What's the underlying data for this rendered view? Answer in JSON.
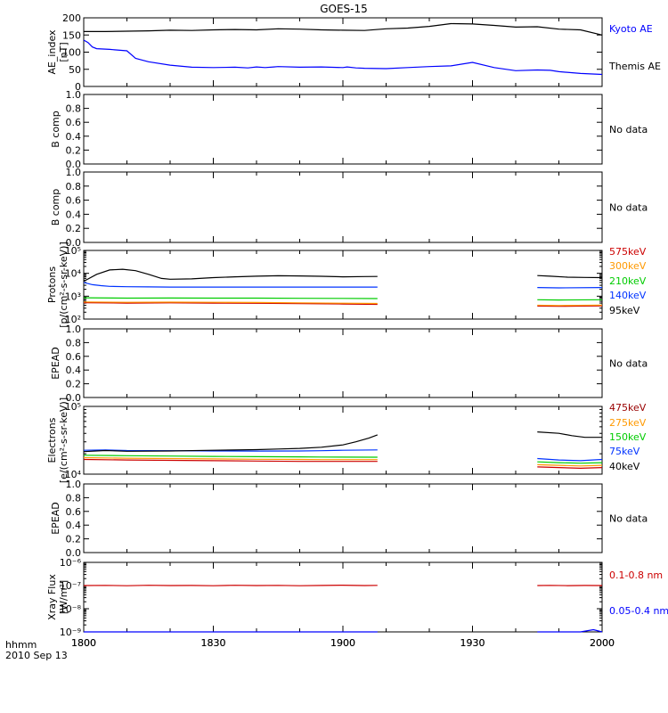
{
  "figure": {
    "title": "GOES-15",
    "time_label": "hhmm",
    "date_label": "2010 Sep 13"
  },
  "chart_data": [
    {
      "id": "ae",
      "type": "line",
      "ylabel": [
        "AE_index",
        "[nT]"
      ],
      "ylim": [
        0,
        200
      ],
      "yscale": "linear",
      "yticks": [
        0,
        50,
        100,
        150,
        200
      ],
      "x_ticks": [
        "1800",
        "1830",
        "1900",
        "1930",
        "2000"
      ],
      "x_minutes_range": [
        0,
        120
      ],
      "series": [
        {
          "name": "Kyoto AE",
          "color": "#0000ff",
          "label_color": "#0000ff",
          "x": [
            0,
            1,
            2,
            3,
            6,
            10,
            12,
            15,
            20,
            25,
            30,
            35,
            38,
            40,
            42,
            44,
            45,
            50,
            55,
            60,
            61,
            63,
            65,
            70,
            75,
            80,
            85,
            90,
            95,
            100,
            105,
            108,
            110,
            115,
            120
          ],
          "y": [
            135,
            128,
            115,
            110,
            108,
            104,
            82,
            72,
            62,
            56,
            55,
            56,
            54,
            57,
            55,
            57,
            58,
            56,
            57,
            55,
            57,
            54,
            53,
            52,
            55,
            58,
            60,
            70,
            55,
            46,
            48,
            47,
            43,
            38,
            35
          ]
        },
        {
          "name": "Themis AE",
          "color": "#000000",
          "label_color": "#000000",
          "x": [
            0,
            5,
            10,
            15,
            20,
            25,
            30,
            35,
            40,
            45,
            50,
            55,
            60,
            65,
            70,
            75,
            80,
            85,
            90,
            95,
            100,
            105,
            110,
            115,
            120
          ],
          "y": [
            160,
            160,
            161,
            162,
            164,
            163,
            165,
            166,
            165,
            168,
            167,
            165,
            164,
            163,
            168,
            170,
            175,
            183,
            182,
            178,
            173,
            174,
            167,
            165,
            150
          ]
        }
      ]
    },
    {
      "id": "bcomp1",
      "type": "line",
      "ylabel": [
        "B comp"
      ],
      "ylim": [
        0,
        1
      ],
      "yscale": "linear",
      "yticks": [
        0.0,
        0.2,
        0.4,
        0.6,
        0.8,
        1.0
      ],
      "ytick_labels": [
        "0.0",
        "0.2",
        "0.4",
        "0.6",
        "0.8",
        "1.0"
      ],
      "note": "No data",
      "series": []
    },
    {
      "id": "bcomp2",
      "type": "line",
      "ylabel": [
        "B comp"
      ],
      "ylim": [
        0,
        1
      ],
      "yscale": "linear",
      "yticks": [
        0.0,
        0.2,
        0.4,
        0.6,
        0.8,
        1.0
      ],
      "ytick_labels": [
        "0.0",
        "0.2",
        "0.4",
        "0.6",
        "0.8",
        "1.0"
      ],
      "note": "No data",
      "series": []
    },
    {
      "id": "protons",
      "type": "line",
      "ylabel": [
        "Protons",
        "[p/(cm²-s-sr-keV)]"
      ],
      "ylim": [
        100,
        100000
      ],
      "yscale": "log",
      "yticks": [
        100,
        1000,
        10000,
        100000
      ],
      "ytick_labels": [
        "10²",
        "10³",
        "10⁴",
        "10⁵"
      ],
      "series": [
        {
          "name": "575keV",
          "color": "#cc0000",
          "label_color": "#cc0000",
          "x": [
            0,
            10,
            20,
            30,
            40,
            50,
            60,
            68,
            105,
            110,
            120
          ],
          "y": [
            520,
            500,
            510,
            500,
            490,
            470,
            455,
            440,
            370,
            360,
            380
          ]
        },
        {
          "name": "300keV",
          "color": "#ff9900",
          "label_color": "#ff9900",
          "x": [
            0,
            10,
            20,
            30,
            40,
            50,
            60,
            68,
            105,
            110,
            120
          ],
          "y": [
            560,
            540,
            550,
            540,
            530,
            510,
            495,
            480,
            400,
            390,
            410
          ]
        },
        {
          "name": "210keV",
          "color": "#00cc00",
          "label_color": "#00cc00",
          "x": [
            0,
            10,
            20,
            30,
            40,
            50,
            60,
            68,
            105,
            110,
            120
          ],
          "y": [
            850,
            820,
            830,
            820,
            820,
            810,
            800,
            790,
            700,
            680,
            700
          ]
        },
        {
          "name": "140keV",
          "color": "#0033ff",
          "label_color": "#0033ff",
          "x": [
            0,
            2,
            4,
            6,
            10,
            15,
            20,
            30,
            40,
            50,
            60,
            68,
            105,
            110,
            120
          ],
          "y": [
            4000,
            3200,
            2900,
            2700,
            2600,
            2550,
            2500,
            2500,
            2500,
            2500,
            2500,
            2500,
            2400,
            2300,
            2400
          ]
        },
        {
          "name": "95keV",
          "color": "#000000",
          "label_color": "#000000",
          "x": [
            0,
            3,
            6,
            9,
            12,
            15,
            18,
            20,
            25,
            30,
            35,
            40,
            45,
            50,
            55,
            60,
            65,
            68,
            105,
            108,
            112,
            116,
            120
          ],
          "y": [
            4500,
            9000,
            14000,
            15000,
            13000,
            9000,
            6000,
            5500,
            5700,
            6500,
            7000,
            7500,
            7800,
            7700,
            7400,
            7000,
            7200,
            7300,
            8000,
            7500,
            6800,
            6600,
            6500
          ]
        }
      ]
    },
    {
      "id": "epead1",
      "type": "line",
      "ylabel": [
        "EPEAD"
      ],
      "ylim": [
        0,
        1
      ],
      "yscale": "linear",
      "yticks": [
        0.0,
        0.2,
        0.4,
        0.6,
        0.8,
        1.0
      ],
      "ytick_labels": [
        "0.0",
        "0.2",
        "0.4",
        "0.6",
        "0.8",
        "1.0"
      ],
      "note": "No data",
      "series": []
    },
    {
      "id": "electrons",
      "type": "line",
      "ylabel": [
        "Electrons",
        "[e/(cm²-s-sr-keV)]"
      ],
      "ylim": [
        10000,
        100000
      ],
      "yscale": "log",
      "yticks": [
        10000,
        100000
      ],
      "ytick_labels": [
        "10⁴",
        "10⁵"
      ],
      "series": [
        {
          "name": "475keV",
          "color": "#cc0000",
          "label_color": "#990000",
          "x": [
            0,
            10,
            20,
            30,
            40,
            50,
            55,
            68,
            105,
            110,
            115,
            120
          ],
          "y": [
            16500,
            16200,
            16000,
            15800,
            15600,
            15400,
            15400,
            15400,
            12800,
            12500,
            12200,
            12500
          ]
        },
        {
          "name": "275keV",
          "color": "#ff9900",
          "label_color": "#ff9900",
          "x": [
            0,
            10,
            20,
            30,
            40,
            50,
            55,
            68,
            105,
            110,
            115,
            120
          ],
          "y": [
            17500,
            17200,
            17000,
            16800,
            16600,
            16500,
            16400,
            16400,
            13800,
            13500,
            13200,
            13500
          ]
        },
        {
          "name": "150keV",
          "color": "#00cc00",
          "label_color": "#00cc00",
          "x": [
            0,
            10,
            20,
            30,
            40,
            50,
            55,
            68,
            105,
            110,
            115,
            120
          ],
          "y": [
            19000,
            18700,
            18500,
            18300,
            18100,
            18000,
            17900,
            17800,
            15200,
            14800,
            14500,
            14800
          ]
        },
        {
          "name": "75keV",
          "color": "#0033ff",
          "label_color": "#0033ff",
          "x": [
            0,
            5,
            10,
            20,
            30,
            40,
            50,
            55,
            60,
            68,
            105,
            110,
            115,
            120
          ],
          "y": [
            22500,
            22800,
            22300,
            22200,
            22000,
            21900,
            22000,
            22200,
            22500,
            22800,
            17000,
            16200,
            15800,
            16500
          ]
        },
        {
          "name": "40keV",
          "color": "#000000",
          "label_color": "#000000",
          "x": [
            0,
            5,
            10,
            20,
            30,
            40,
            45,
            50,
            55,
            60,
            63,
            66,
            68,
            105,
            110,
            113,
            116,
            120
          ],
          "y": [
            21500,
            22300,
            21800,
            22000,
            22500,
            23000,
            23500,
            24000,
            25000,
            27000,
            30000,
            34000,
            38000,
            42000,
            40000,
            37000,
            35000,
            35000
          ]
        }
      ]
    },
    {
      "id": "epead2",
      "type": "line",
      "ylabel": [
        "EPEAD"
      ],
      "ylim": [
        0,
        1
      ],
      "yscale": "linear",
      "yticks": [
        0.0,
        0.2,
        0.4,
        0.6,
        0.8,
        1.0
      ],
      "ytick_labels": [
        "0.0",
        "0.2",
        "0.4",
        "0.6",
        "0.8",
        "1.0"
      ],
      "note": "No data",
      "series": []
    },
    {
      "id": "xray",
      "type": "line",
      "ylabel": [
        "Xray Flux",
        "[W/m²]"
      ],
      "ylim": [
        1e-09,
        1e-06
      ],
      "yscale": "log",
      "yticks": [
        1e-09,
        1e-08,
        1e-07,
        1e-06
      ],
      "ytick_labels": [
        "10⁻⁹",
        "10⁻⁸",
        "10⁻⁷",
        "10⁻⁶"
      ],
      "series": [
        {
          "name": "0.1-0.8 nm",
          "color": "#cc0000",
          "label_color": "#cc0000",
          "x": [
            0,
            5,
            10,
            15,
            20,
            25,
            30,
            35,
            40,
            45,
            50,
            55,
            60,
            65,
            68,
            105,
            108,
            112,
            116,
            120
          ],
          "y": [
            1e-07,
            1.02e-07,
            9.8e-08,
            1.03e-07,
            1e-07,
            1.01e-07,
            9.8e-08,
            1.03e-07,
            1e-07,
            1.02e-07,
            9.8e-08,
            1.01e-07,
            1.04e-07,
            1e-07,
            1.02e-07,
            1e-07,
            1.02e-07,
            9.9e-08,
            1.01e-07,
            1e-07
          ]
        },
        {
          "name": "0.05-0.4 nm",
          "color": "#0000ff",
          "label_color": "#0000ff",
          "x": [
            0,
            20,
            40,
            60,
            68,
            105,
            110,
            115,
            118,
            120
          ],
          "y": [
            1e-09,
            1e-09,
            1e-09,
            1e-09,
            1e-09,
            1e-09,
            1e-09,
            1e-09,
            1.25e-09,
            1e-09
          ]
        }
      ]
    }
  ]
}
